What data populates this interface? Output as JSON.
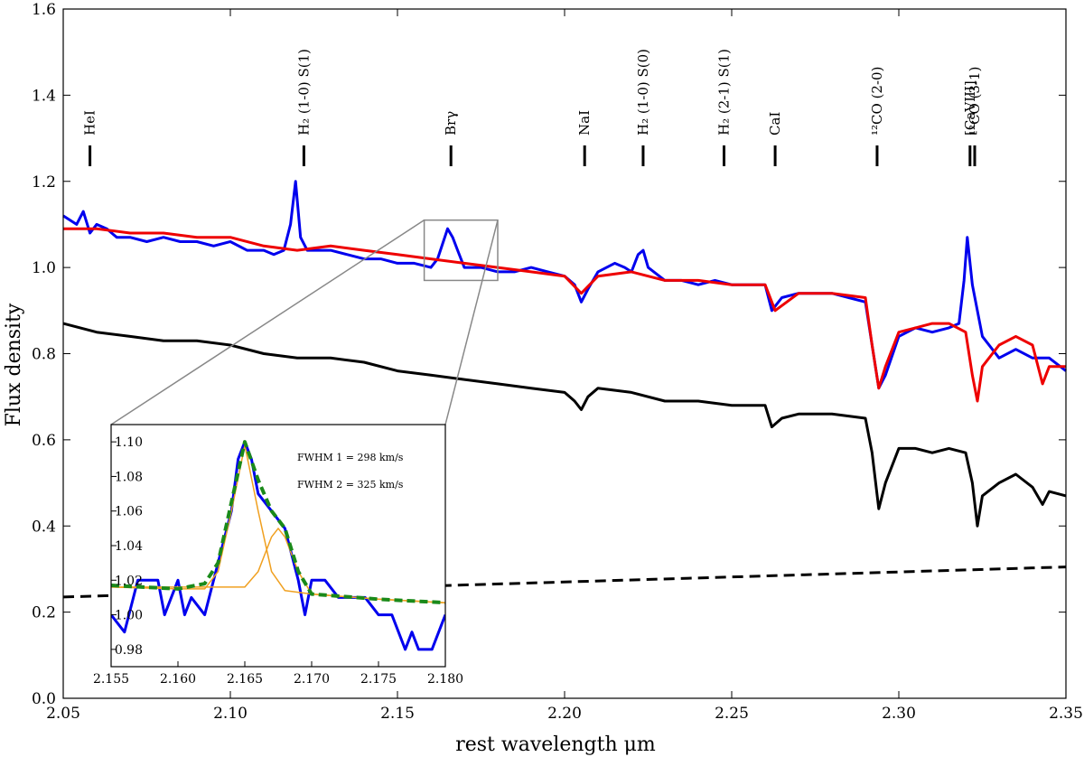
{
  "chart_data": {
    "type": "line",
    "title": "",
    "xlabel": "rest wavelength  μm",
    "ylabel": "Flux density",
    "xlim": [
      2.05,
      2.35
    ],
    "ylim": [
      0.0,
      1.6
    ],
    "xticks": [
      "2.05",
      "2.10",
      "2.15",
      "2.20",
      "2.25",
      "2.30",
      "2.35"
    ],
    "yticks": [
      "0.0",
      "0.2",
      "0.4",
      "0.6",
      "0.8",
      "1.0",
      "1.2",
      "1.4",
      "1.6"
    ],
    "grid": false,
    "legend": null,
    "colors": {
      "observed": "#0000ee",
      "model": "#ee0000",
      "stellar": "#000000",
      "continuum": "#000000",
      "fit_total": "#1a8a1a",
      "fit_component": "#f0a020",
      "fit_total_inner": "#cc3377"
    },
    "series": [
      {
        "color": "#0000ee",
        "x": [
          2.05,
          2.054,
          2.056,
          2.058,
          2.06,
          2.063,
          2.066,
          2.07,
          2.075,
          2.08,
          2.085,
          2.09,
          2.095,
          2.1,
          2.105,
          2.11,
          2.113,
          2.116,
          2.118,
          2.1195,
          2.121,
          2.123,
          2.126,
          2.13,
          2.135,
          2.14,
          2.145,
          2.15,
          2.155,
          2.16,
          2.162,
          2.165,
          2.1665,
          2.168,
          2.17,
          2.175,
          2.18,
          2.185,
          2.19,
          2.195,
          2.2,
          2.203,
          2.205,
          2.207,
          2.21,
          2.215,
          2.218,
          2.22,
          2.222,
          2.2235,
          2.225,
          2.23,
          2.235,
          2.24,
          2.245,
          2.25,
          2.255,
          2.26,
          2.262,
          2.265,
          2.27,
          2.275,
          2.28,
          2.285,
          2.29,
          2.292,
          2.294,
          2.296,
          2.3,
          2.305,
          2.31,
          2.315,
          2.318,
          2.3195,
          2.3205,
          2.322,
          2.325,
          2.33,
          2.335,
          2.34,
          2.345,
          2.35
        ],
        "y": [
          1.12,
          1.1,
          1.13,
          1.08,
          1.1,
          1.09,
          1.07,
          1.07,
          1.06,
          1.07,
          1.06,
          1.06,
          1.05,
          1.06,
          1.04,
          1.04,
          1.03,
          1.04,
          1.1,
          1.2,
          1.07,
          1.04,
          1.04,
          1.04,
          1.03,
          1.02,
          1.02,
          1.01,
          1.01,
          1.0,
          1.02,
          1.09,
          1.07,
          1.04,
          1.0,
          1.0,
          0.99,
          0.99,
          1.0,
          0.99,
          0.98,
          0.96,
          0.92,
          0.95,
          0.99,
          1.01,
          1.0,
          0.99,
          1.03,
          1.04,
          1.0,
          0.97,
          0.97,
          0.96,
          0.97,
          0.96,
          0.96,
          0.96,
          0.9,
          0.93,
          0.94,
          0.94,
          0.94,
          0.93,
          0.92,
          0.82,
          0.72,
          0.75,
          0.84,
          0.86,
          0.85,
          0.86,
          0.87,
          0.97,
          1.07,
          0.96,
          0.84,
          0.79,
          0.81,
          0.79,
          0.79,
          0.76
        ]
      },
      {
        "color": "#ee0000",
        "x": [
          2.05,
          2.06,
          2.07,
          2.08,
          2.09,
          2.1,
          2.11,
          2.12,
          2.13,
          2.14,
          2.15,
          2.16,
          2.17,
          2.18,
          2.19,
          2.2,
          2.205,
          2.21,
          2.22,
          2.23,
          2.24,
          2.25,
          2.26,
          2.263,
          2.27,
          2.28,
          2.29,
          2.292,
          2.294,
          2.296,
          2.3,
          2.305,
          2.31,
          2.315,
          2.32,
          2.322,
          2.3235,
          2.325,
          2.33,
          2.335,
          2.34,
          2.343,
          2.345,
          2.35
        ],
        "y": [
          1.09,
          1.09,
          1.08,
          1.08,
          1.07,
          1.07,
          1.05,
          1.04,
          1.05,
          1.04,
          1.03,
          1.02,
          1.01,
          1.0,
          0.99,
          0.98,
          0.94,
          0.98,
          0.99,
          0.97,
          0.97,
          0.96,
          0.96,
          0.9,
          0.94,
          0.94,
          0.93,
          0.82,
          0.72,
          0.77,
          0.85,
          0.86,
          0.87,
          0.87,
          0.85,
          0.75,
          0.69,
          0.77,
          0.82,
          0.84,
          0.82,
          0.73,
          0.77,
          0.77
        ]
      },
      {
        "color": "#000000",
        "x": [
          2.05,
          2.06,
          2.07,
          2.08,
          2.09,
          2.1,
          2.11,
          2.12,
          2.13,
          2.14,
          2.15,
          2.16,
          2.17,
          2.18,
          2.19,
          2.2,
          2.203,
          2.205,
          2.207,
          2.21,
          2.22,
          2.23,
          2.24,
          2.25,
          2.26,
          2.262,
          2.265,
          2.27,
          2.28,
          2.29,
          2.292,
          2.294,
          2.296,
          2.3,
          2.305,
          2.31,
          2.315,
          2.32,
          2.322,
          2.3235,
          2.325,
          2.33,
          2.335,
          2.34,
          2.343,
          2.345,
          2.35
        ],
        "y": [
          0.87,
          0.85,
          0.84,
          0.83,
          0.83,
          0.82,
          0.8,
          0.79,
          0.79,
          0.78,
          0.76,
          0.75,
          0.74,
          0.73,
          0.72,
          0.71,
          0.69,
          0.67,
          0.7,
          0.72,
          0.71,
          0.69,
          0.69,
          0.68,
          0.68,
          0.63,
          0.65,
          0.66,
          0.66,
          0.65,
          0.57,
          0.44,
          0.5,
          0.58,
          0.58,
          0.57,
          0.58,
          0.57,
          0.5,
          0.4,
          0.47,
          0.5,
          0.52,
          0.49,
          0.45,
          0.48,
          0.47
        ]
      },
      {
        "color": "#000000",
        "dashed": true,
        "x": [
          2.05,
          2.35
        ],
        "y": [
          0.235,
          0.305
        ]
      }
    ],
    "line_markers": [
      {
        "label": "HeI",
        "x": 2.058
      },
      {
        "label": "H₂ (1-0) S(1)",
        "x": 2.122
      },
      {
        "label": "Brγ",
        "x": 2.166
      },
      {
        "label": "NaI",
        "x": 2.206
      },
      {
        "label": "H₂ (1-0) S(0)",
        "x": 2.2235
      },
      {
        "label": "H₂ (2-1) S(1)",
        "x": 2.2477
      },
      {
        "label": "CaI",
        "x": 2.263
      },
      {
        "label": "¹²CO (2-0)",
        "x": 2.2935
      },
      {
        "label": "[CaVIII]",
        "x": 2.3213
      },
      {
        "label": "¹²CO (3-1)",
        "x": 2.3227
      }
    ],
    "inset": {
      "type": "line",
      "xlim": [
        2.155,
        2.18
      ],
      "ylim": [
        0.97,
        1.11
      ],
      "xticks": [
        "2.155",
        "2.160",
        "2.165",
        "2.170",
        "2.175",
        "2.180"
      ],
      "yticks": [
        "0.98",
        "1.00",
        "1.02",
        "1.04",
        "1.06",
        "1.08",
        "1.10"
      ],
      "annotations": [
        "FWHM 1 = 298 km/s",
        "FWHM 2 = 325 km/s"
      ],
      "zoom_box": {
        "xlim": [
          2.158,
          2.18
        ],
        "ylim": [
          0.97,
          1.11
        ]
      },
      "series": [
        {
          "color": "#0000ee",
          "x": [
            2.155,
            2.156,
            2.157,
            2.158,
            2.1585,
            2.159,
            2.16,
            2.1605,
            2.161,
            2.162,
            2.163,
            2.164,
            2.1645,
            2.165,
            2.1655,
            2.166,
            2.167,
            2.168,
            2.169,
            2.1695,
            2.17,
            2.171,
            2.172,
            2.173,
            2.174,
            2.175,
            2.176,
            2.177,
            2.1775,
            2.178,
            2.179,
            2.18
          ],
          "y": [
            1.0,
            0.99,
            1.02,
            1.02,
            1.02,
            1.0,
            1.02,
            1.0,
            1.01,
            1.0,
            1.03,
            1.06,
            1.09,
            1.1,
            1.09,
            1.07,
            1.06,
            1.05,
            1.02,
            1.0,
            1.02,
            1.02,
            1.01,
            1.01,
            1.01,
            1.0,
            1.0,
            0.98,
            0.99,
            0.98,
            0.98,
            1.0
          ]
        },
        {
          "color": "#1a8a1a",
          "dashed": true,
          "x": [
            2.155,
            2.16,
            2.162,
            2.163,
            2.164,
            2.165,
            2.166,
            2.167,
            2.168,
            2.169,
            2.17,
            2.175,
            2.18
          ],
          "y": [
            1.017,
            1.015,
            1.018,
            1.03,
            1.065,
            1.1,
            1.078,
            1.06,
            1.05,
            1.025,
            1.012,
            1.009,
            1.007
          ]
        },
        {
          "color": "#f0a020",
          "x": [
            2.155,
            2.16,
            2.162,
            2.163,
            2.164,
            2.165,
            2.166,
            2.167,
            2.168,
            2.17,
            2.175,
            2.18
          ],
          "y": [
            1.016,
            1.015,
            1.015,
            1.025,
            1.06,
            1.098,
            1.06,
            1.025,
            1.014,
            1.012,
            1.009,
            1.007
          ]
        },
        {
          "color": "#f0a020",
          "x": [
            2.155,
            2.165,
            2.166,
            2.167,
            2.1675,
            2.168,
            2.169,
            2.17,
            2.175,
            2.18
          ],
          "y": [
            1.016,
            1.016,
            1.025,
            1.045,
            1.05,
            1.045,
            1.025,
            1.012,
            1.009,
            1.007
          ]
        }
      ]
    }
  }
}
